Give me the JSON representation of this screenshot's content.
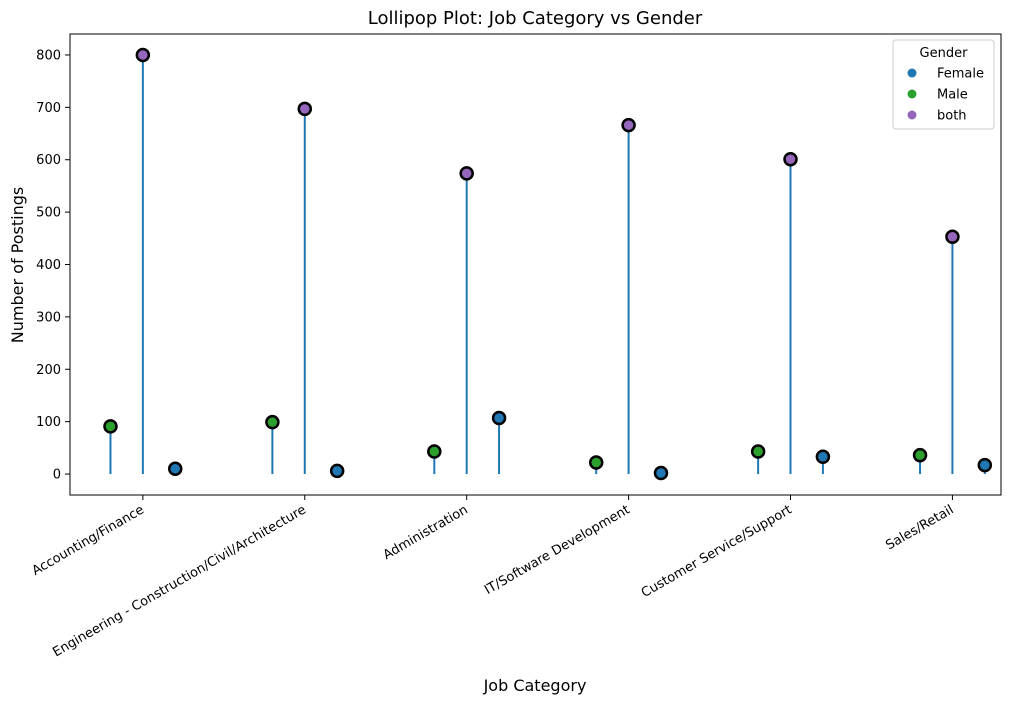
{
  "chart_data": {
    "type": "lollipop",
    "title": "Lollipop Plot: Job Category vs Gender",
    "xlabel": "Job Category",
    "ylabel": "Number of Postings",
    "ylim": [
      -40,
      840
    ],
    "yticks": [
      0,
      100,
      200,
      300,
      400,
      500,
      600,
      700,
      800
    ],
    "categories": [
      "Accounting/Finance",
      "Engineering - Construction/Civil/Architecture",
      "Administration",
      "IT/Software Development",
      "Customer Service/Support",
      "Sales/Retail"
    ],
    "series": [
      {
        "name": "Male",
        "color": "#2ca02c",
        "offset": -0.2,
        "values": [
          91,
          99,
          43,
          22,
          43,
          36
        ]
      },
      {
        "name": "both",
        "color": "#9467bd",
        "offset": 0.0,
        "values": [
          800,
          697,
          574,
          666,
          601,
          453
        ]
      },
      {
        "name": "Female",
        "color": "#1f77b4",
        "offset": 0.2,
        "values": [
          10,
          6,
          107,
          2,
          33,
          17
        ]
      }
    ],
    "stem_color": "#1f77b4",
    "grid": false,
    "legend": {
      "title": "Gender",
      "placement": "top-right",
      "entries": [
        {
          "name": "Female",
          "color": "#1f77b4"
        },
        {
          "name": "Male",
          "color": "#2ca02c"
        },
        {
          "name": "both",
          "color": "#9467bd"
        }
      ]
    }
  }
}
